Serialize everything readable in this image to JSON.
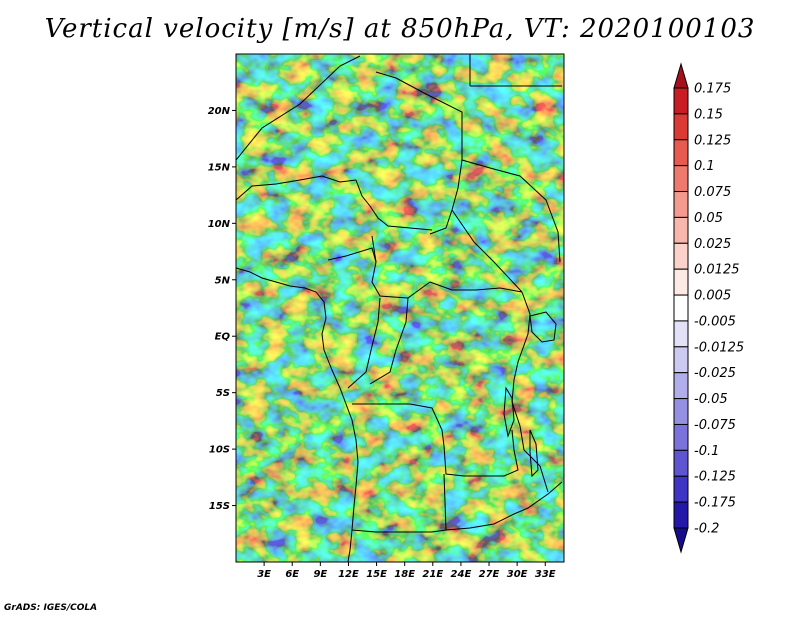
{
  "title": "Vertical velocity [m/s] at 850hPa, VT: 2020100103",
  "credit": "GrADS: IGES/COLA",
  "lat_ticks": [
    "20N",
    "15N",
    "10N",
    "5N",
    "EQ",
    "5S",
    "10S",
    "15S"
  ],
  "lat_values": [
    20,
    15,
    10,
    5,
    0,
    -5,
    -10,
    -15
  ],
  "lon_ticks": [
    "3E",
    "6E",
    "9E",
    "12E",
    "15E",
    "18E",
    "21E",
    "24E",
    "27E",
    "30E",
    "33E"
  ],
  "lon_values": [
    3,
    6,
    9,
    12,
    15,
    18,
    21,
    24,
    27,
    30,
    33
  ],
  "extent": {
    "lon_min": 0,
    "lon_max": 35,
    "lat_min": -20,
    "lat_max": 25
  },
  "colorbar": {
    "levels": [
      "0.175",
      "0.15",
      "0.125",
      "0.1",
      "0.075",
      "0.05",
      "0.025",
      "0.0125",
      "0.005",
      "-0.005",
      "-0.0125",
      "-0.025",
      "-0.05",
      "-0.075",
      "-0.1",
      "-0.125",
      "-0.175",
      "-0.2"
    ],
    "colors": [
      "#a5101a",
      "#c81e23",
      "#dc3a34",
      "#e65a4f",
      "#ee7a6e",
      "#f59a8e",
      "#f8b7ac",
      "#fbd2ca",
      "#fdeae5",
      "#ffffff",
      "#e3e1f8",
      "#cdcaf2",
      "#b2adeb",
      "#9690e3",
      "#7b72db",
      "#5e55d1",
      "#3f35c4",
      "#2418a8",
      "#160c8e"
    ]
  }
}
